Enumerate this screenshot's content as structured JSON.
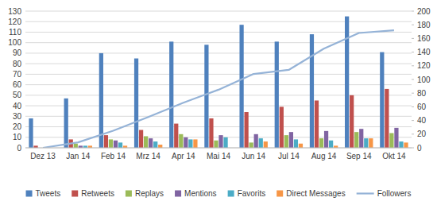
{
  "chart_data": {
    "type": "bar",
    "categories": [
      "Dez 13",
      "Jan 14",
      "Feb 14",
      "Mrz 14",
      "Apr 14",
      "Mai 14",
      "Jun 14",
      "Jul 14",
      "Aug 14",
      "Sep 14",
      "Okt 14"
    ],
    "series": [
      {
        "name": "Tweets",
        "color": "#4f81bd",
        "values": [
          28,
          47,
          90,
          85,
          101,
          98,
          117,
          101,
          108,
          125,
          91
        ]
      },
      {
        "name": "Retweets",
        "color": "#c0504d",
        "values": [
          2,
          8,
          12,
          17,
          23,
          28,
          34,
          39,
          45,
          50,
          56
        ]
      },
      {
        "name": "Replays",
        "color": "#9bbb59",
        "values": [
          0,
          4,
          8,
          11,
          13,
          7,
          5,
          12,
          9,
          15,
          14
        ]
      },
      {
        "name": "Mentions",
        "color": "#8064a2",
        "values": [
          0,
          2,
          7,
          9,
          10,
          12,
          13,
          15,
          16,
          18,
          19
        ]
      },
      {
        "name": "Favorits",
        "color": "#4bacc6",
        "values": [
          0,
          2,
          5,
          6,
          8,
          10,
          9,
          8,
          7,
          9,
          6
        ]
      },
      {
        "name": "Direct Messages",
        "color": "#f79646",
        "values": [
          0,
          2,
          2,
          3,
          8,
          0,
          6,
          4,
          2,
          9,
          5
        ]
      },
      {
        "name": "Followers",
        "color": "#95b3d7",
        "type": "line",
        "axis": "y2",
        "values": [
          0,
          8,
          25,
          45,
          66,
          85,
          108,
          114,
          145,
          168,
          172
        ]
      }
    ],
    "ylim": [
      0,
      130
    ],
    "yticks": [
      0,
      10,
      20,
      30,
      40,
      50,
      60,
      70,
      80,
      90,
      100,
      110,
      120,
      130
    ],
    "y2lim": [
      0,
      200
    ],
    "y2ticks": [
      0,
      20,
      40,
      60,
      80,
      100,
      120,
      140,
      160,
      180,
      200
    ],
    "grid": true,
    "legend": "bottom"
  }
}
